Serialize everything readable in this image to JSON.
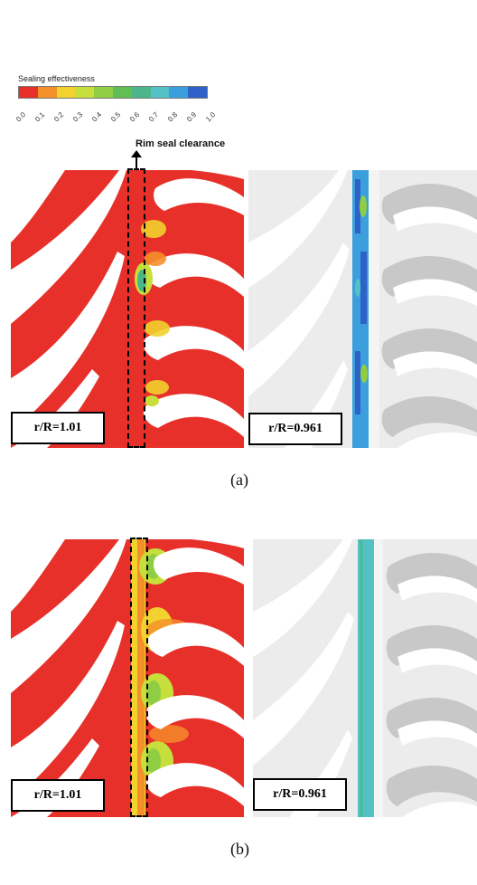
{
  "legend": {
    "title": "Sealing effectiveness",
    "ticks": [
      "0.0",
      "0.1",
      "0.2",
      "0.3",
      "0.4",
      "0.5",
      "0.6",
      "0.7",
      "0.8",
      "0.9",
      "1.0"
    ],
    "colors": [
      "#e8302a",
      "#f4902a",
      "#f2d22e",
      "#c6df3a",
      "#8fce43",
      "#5fbf55",
      "#4bb68a",
      "#52c2c6",
      "#3a9fdc",
      "#2e62c8"
    ]
  },
  "annotation": {
    "rim_seal_label": "Rim seal clearance"
  },
  "panels": {
    "a": {
      "caption": "(a)",
      "left_label": "r/R=1.01",
      "right_label": "r/R=0.961"
    },
    "b": {
      "caption": "(b)",
      "left_label": "r/R=1.01",
      "right_label": "r/R=0.961"
    }
  }
}
